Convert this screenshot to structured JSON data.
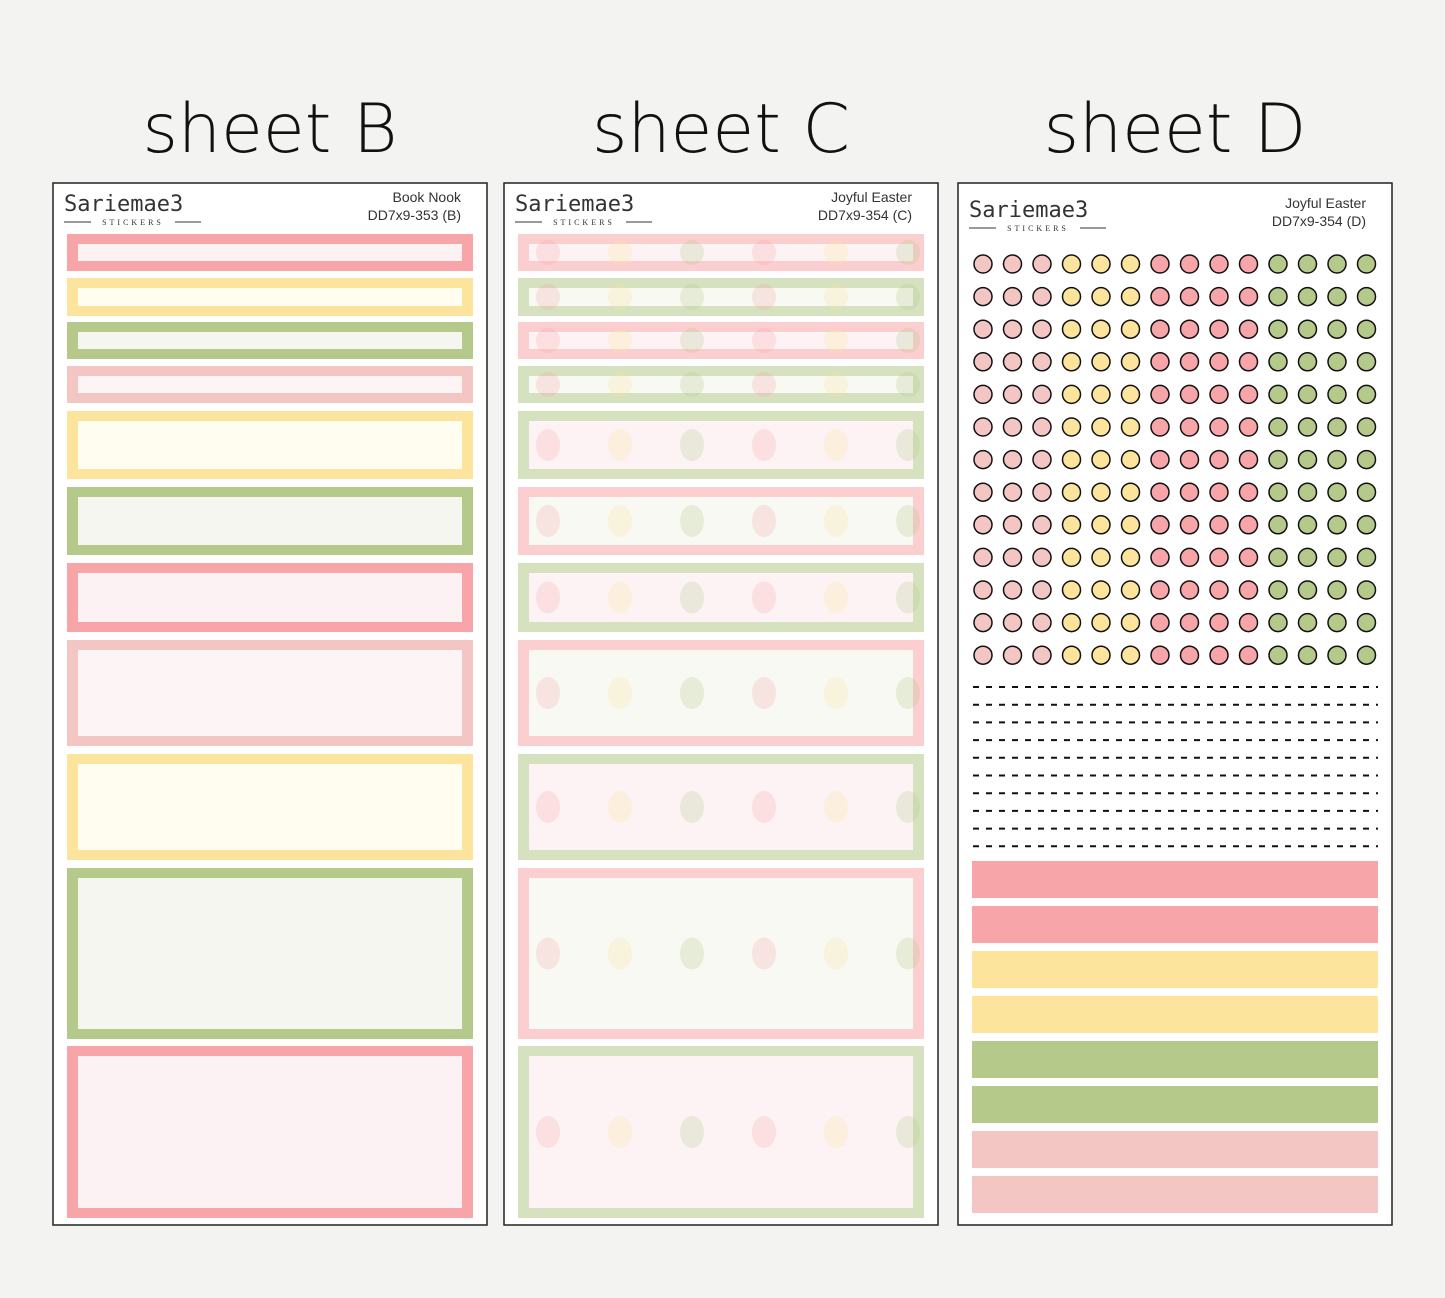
{
  "sheets": [
    {
      "heading": "sheet B",
      "brand": "Sariemae3",
      "brand_sub": "STICKERS",
      "title": "Book Nook",
      "code": "DD7x9-353 (B)"
    },
    {
      "heading": "sheet C",
      "brand": "Sariemae3",
      "brand_sub": "STICKERS",
      "title": "Joyful Easter",
      "code": "DD7x9-354 (C)"
    },
    {
      "heading": "sheet D",
      "brand": "Sariemae3",
      "brand_sub": "STICKERS",
      "title": "Joyful Easter",
      "code": "DD7x9-354 (D)"
    }
  ]
}
